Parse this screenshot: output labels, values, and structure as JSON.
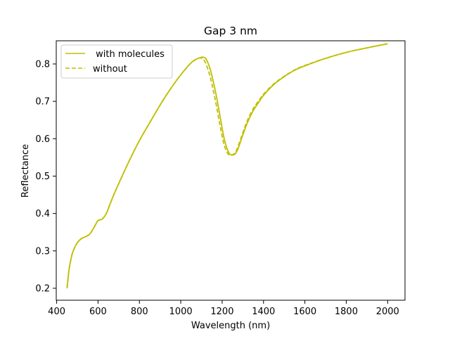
{
  "chart_data": {
    "type": "line",
    "title": "Gap 3 nm",
    "xlabel": "Wavelength (nm)",
    "ylabel": "Reflectance",
    "xlim": [
      398,
      2084
    ],
    "ylim": [
      0.168,
      0.862
    ],
    "xticks": [
      400,
      600,
      800,
      1000,
      1200,
      1400,
      1600,
      1800,
      2000
    ],
    "yticks": [
      0.2,
      0.3,
      0.4,
      0.5,
      0.6,
      0.7,
      0.8
    ],
    "xtick_labels": [
      "400",
      "600",
      "800",
      "1000",
      "1200",
      "1400",
      "1600",
      "1800",
      "2000"
    ],
    "ytick_labels": [
      "0.2",
      "0.3",
      "0.4",
      "0.5",
      "0.6",
      "0.7",
      "0.8"
    ],
    "grid": false,
    "legend": {
      "position": "upper-left",
      "entries": [
        {
          "label": " with molecules",
          "style": "solid"
        },
        {
          "label": "without",
          "style": "dashed"
        }
      ]
    },
    "series": [
      {
        "name": " with molecules",
        "color": "#bfbf00",
        "style": "solid",
        "x": [
          450,
          460,
          470,
          480,
          500,
          520,
          540,
          560,
          580,
          600,
          620,
          640,
          660,
          680,
          700,
          750,
          800,
          850,
          900,
          950,
          1000,
          1050,
          1080,
          1100,
          1110,
          1120,
          1130,
          1140,
          1150,
          1170,
          1190,
          1210,
          1230,
          1245,
          1260,
          1270,
          1280,
          1300,
          1320,
          1350,
          1380,
          1400,
          1450,
          1500,
          1550,
          1600,
          1700,
          1800,
          1900,
          2000
        ],
        "y": [
          0.2,
          0.25,
          0.28,
          0.3,
          0.322,
          0.333,
          0.338,
          0.345,
          0.362,
          0.381,
          0.385,
          0.4,
          0.428,
          0.455,
          0.48,
          0.54,
          0.595,
          0.643,
          0.69,
          0.733,
          0.771,
          0.803,
          0.814,
          0.818,
          0.818,
          0.815,
          0.805,
          0.79,
          0.77,
          0.72,
          0.66,
          0.6,
          0.565,
          0.557,
          0.558,
          0.565,
          0.578,
          0.61,
          0.64,
          0.675,
          0.7,
          0.716,
          0.745,
          0.766,
          0.783,
          0.795,
          0.815,
          0.831,
          0.843,
          0.854
        ]
      },
      {
        "name": "without",
        "color": "#bfbf00",
        "style": "dashed",
        "x": [
          450,
          460,
          470,
          480,
          500,
          520,
          540,
          560,
          580,
          600,
          620,
          640,
          660,
          680,
          700,
          750,
          800,
          850,
          900,
          950,
          1000,
          1050,
          1080,
          1100,
          1110,
          1120,
          1130,
          1140,
          1150,
          1170,
          1190,
          1210,
          1230,
          1245,
          1260,
          1270,
          1280,
          1300,
          1320,
          1350,
          1380,
          1400,
          1450,
          1500,
          1550,
          1600,
          1700,
          1800,
          1900,
          2000
        ],
        "y": [
          0.2,
          0.25,
          0.28,
          0.3,
          0.322,
          0.333,
          0.338,
          0.345,
          0.362,
          0.381,
          0.385,
          0.4,
          0.428,
          0.455,
          0.48,
          0.54,
          0.595,
          0.643,
          0.69,
          0.733,
          0.771,
          0.803,
          0.814,
          0.816,
          0.812,
          0.803,
          0.788,
          0.77,
          0.748,
          0.695,
          0.635,
          0.583,
          0.558,
          0.556,
          0.561,
          0.57,
          0.584,
          0.616,
          0.646,
          0.68,
          0.704,
          0.719,
          0.747,
          0.767,
          0.784,
          0.796,
          0.815,
          0.831,
          0.843,
          0.854
        ]
      }
    ]
  }
}
